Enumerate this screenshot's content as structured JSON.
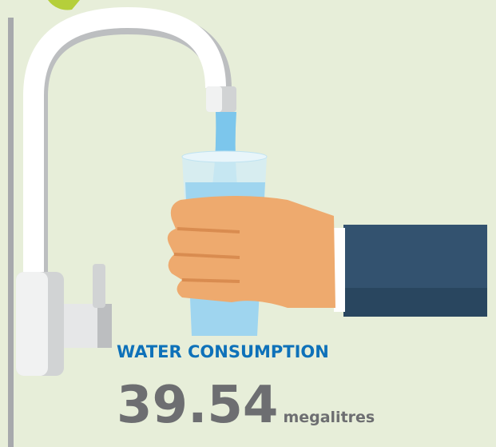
{
  "label": "WATER CONSUMPTION",
  "value": 39.54,
  "unit": "megalitres"
}
